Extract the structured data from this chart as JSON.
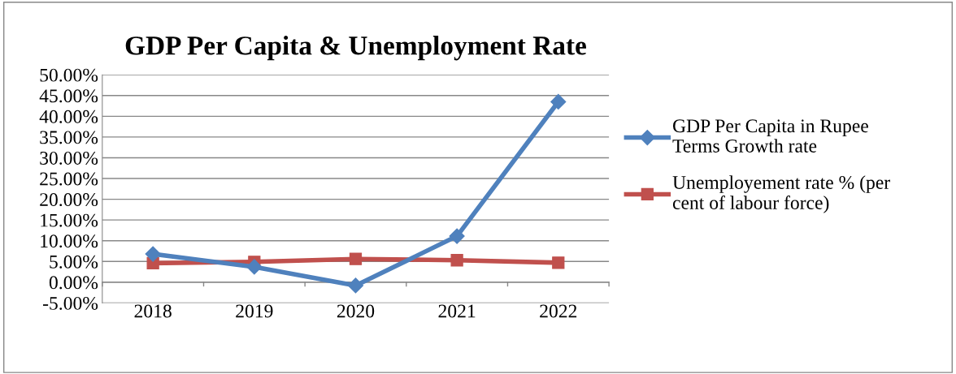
{
  "chart_data": {
    "type": "line",
    "title": "GDP Per Capita & Unemployment Rate",
    "categories": [
      "2018",
      "2019",
      "2020",
      "2021",
      "2022"
    ],
    "series": [
      {
        "name": "GDP Per Capita in Rupee Terms Growth rate",
        "color": "#4f81bd",
        "marker": "diamond",
        "values": [
          6.8,
          3.7,
          -0.8,
          11.1,
          43.5
        ]
      },
      {
        "name": "Unemployement rate % (per cent of labour force)",
        "color": "#c0504d",
        "marker": "square",
        "values": [
          4.6,
          4.9,
          5.6,
          5.3,
          4.7
        ]
      }
    ],
    "ylim": [
      -5,
      50
    ],
    "yticks": [
      {
        "value": -5,
        "label": "-5.00%"
      },
      {
        "value": 0,
        "label": "0.00%"
      },
      {
        "value": 5,
        "label": "5.00%"
      },
      {
        "value": 10,
        "label": "10.00%"
      },
      {
        "value": 15,
        "label": "15.00%"
      },
      {
        "value": 20,
        "label": "20.00%"
      },
      {
        "value": 25,
        "label": "25.00%"
      },
      {
        "value": 30,
        "label": "30.00%"
      },
      {
        "value": 35,
        "label": "35.00%"
      },
      {
        "value": 40,
        "label": "40.00%"
      },
      {
        "value": 45,
        "label": "45.00%"
      },
      {
        "value": 50,
        "label": "50.00%"
      }
    ],
    "grid": "y",
    "legend": "right",
    "line_style": "solid"
  }
}
